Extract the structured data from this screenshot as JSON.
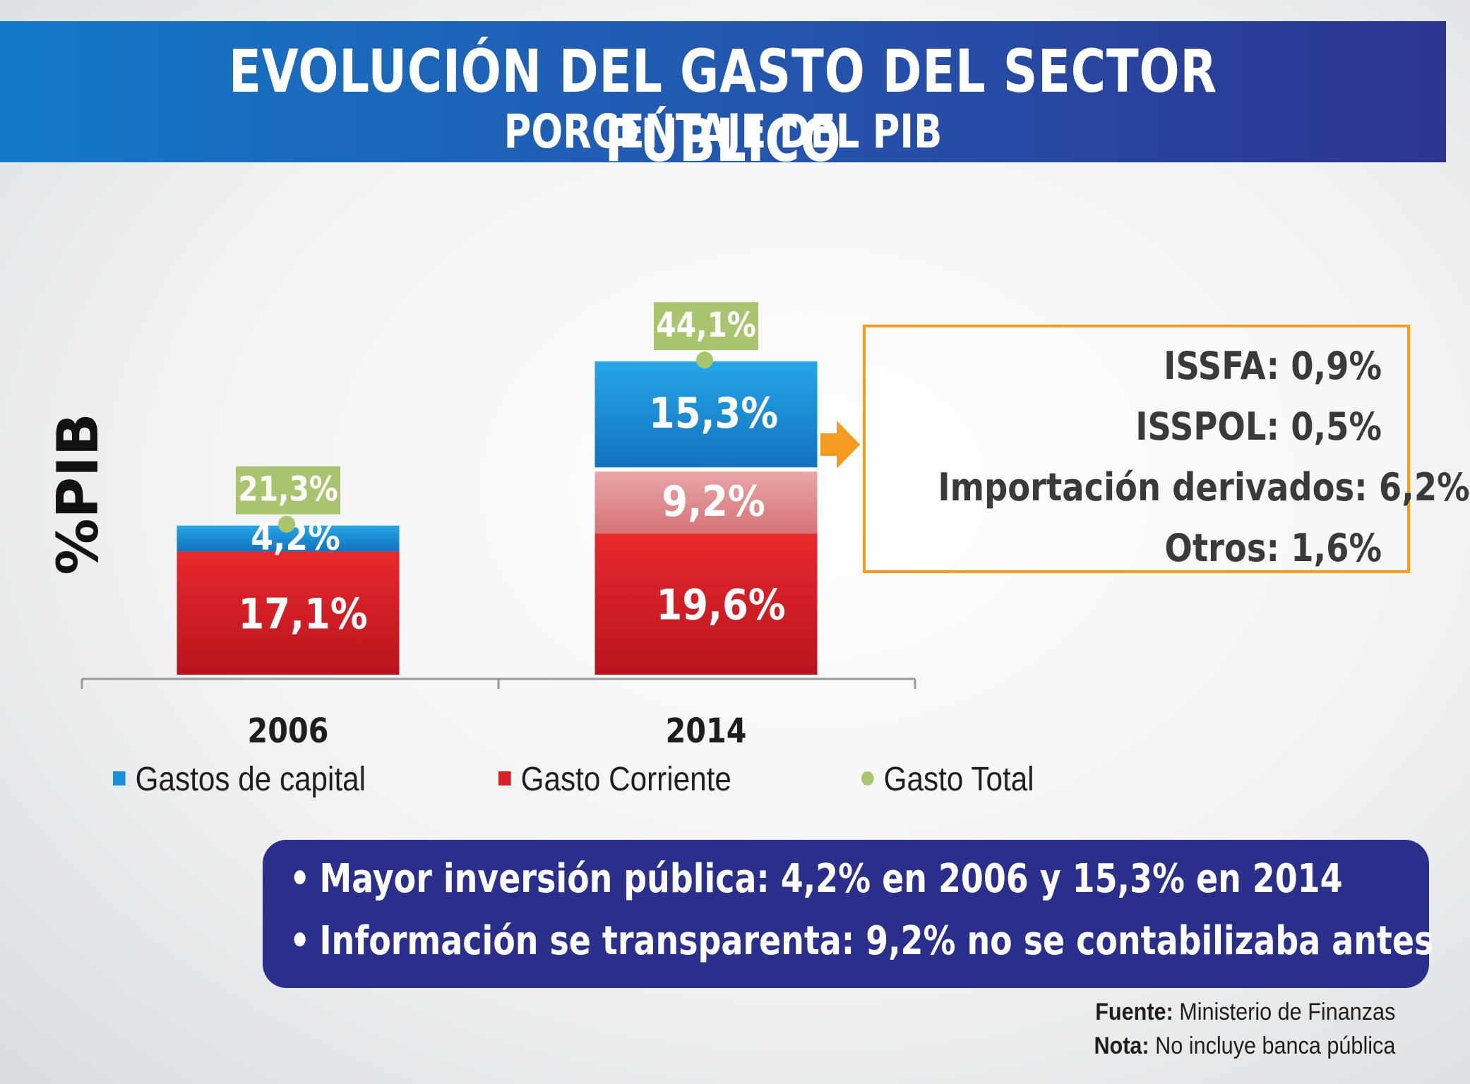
{
  "header": {
    "title": "EVOLUCIÓN DEL GASTO DEL SECTOR PÚBLICO",
    "subtitle": "PORCENTAJE DEL PIB"
  },
  "colors": {
    "capital": "#1a8fd9",
    "corriente": "#d62227",
    "transparentado": "#e08a8e",
    "total": "#a9c46e",
    "accent": "#f39c1f",
    "notes_bg": "#2b2f8c"
  },
  "chart_data": {
    "type": "bar",
    "stacked": true,
    "ylabel": "%PIB",
    "categories": [
      "2006",
      "2014"
    ],
    "series": [
      {
        "name": "Gasto Corriente",
        "values": [
          17.1,
          19.6
        ],
        "labels": [
          "17,1%",
          "19,6%"
        ],
        "color": "#d62227"
      },
      {
        "name": "",
        "values": [
          0,
          9.2
        ],
        "labels": [
          "",
          "9,2%"
        ],
        "color": "#e08a8e"
      },
      {
        "name": "Gastos de capital",
        "values": [
          4.2,
          15.3
        ],
        "labels": [
          "4,2%",
          "15,3%"
        ],
        "color": "#1a8fd9"
      }
    ],
    "totals": {
      "name": "Gasto Total",
      "values": [
        21.3,
        44.1
      ],
      "labels": [
        "21,3%",
        "44,1%"
      ]
    },
    "grid": false,
    "legend_position": "bottom"
  },
  "breakdown": {
    "items": [
      "ISSFA: 0,9%",
      "ISSPOL: 0,5%",
      "Importación derivados: 6,2%",
      "Otros: 1,6%"
    ]
  },
  "legend": {
    "items": [
      {
        "label": "Gastos de capital",
        "color": "#1a8fd9",
        "shape": "square"
      },
      {
        "label": "Gasto Corriente",
        "color": "#d62227",
        "shape": "square"
      },
      {
        "label": "Gasto Total",
        "color": "#a9c46e",
        "shape": "dot"
      }
    ]
  },
  "notes": {
    "bullet": "•",
    "items": [
      "Mayor inversión pública: 4,2% en 2006 y 15,3% en 2014",
      "Información se transparenta: 9,2% no se contabilizaba antes"
    ]
  },
  "footer": {
    "source_label": "Fuente:",
    "source_text": "Ministerio de Finanzas",
    "note_label": "Nota:",
    "note_text": "No incluye banca pública"
  }
}
